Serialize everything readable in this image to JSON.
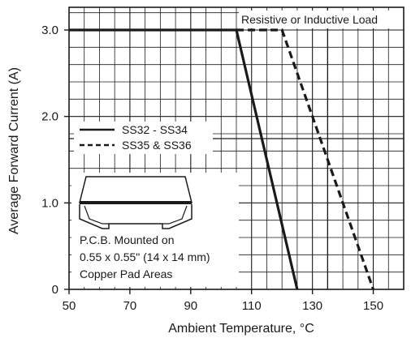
{
  "chart_data": {
    "type": "line",
    "xlabel": "Ambient Temperature, °C",
    "ylabel": "Average Forward Current (A)",
    "xlim": [
      50,
      160
    ],
    "ylim": [
      0,
      3.0
    ],
    "x_ticks": [
      50,
      70,
      90,
      110,
      130,
      150
    ],
    "x_tick_labels": [
      "50",
      "70",
      "90",
      "110",
      "130",
      "150"
    ],
    "y_ticks": [
      0,
      1.0,
      2.0,
      3.0
    ],
    "y_tick_labels": [
      "0",
      "1.0",
      "2.0",
      "3.0"
    ],
    "grid": true,
    "series": [
      {
        "name": "SS32 - SS34",
        "style": "solid",
        "color": "#1a1a1a",
        "x": [
          50,
          105,
          125
        ],
        "y": [
          3.0,
          3.0,
          0
        ]
      },
      {
        "name": "SS35 & SS36",
        "style": "dashed",
        "color": "#1a1a1a",
        "x": [
          105,
          120,
          150
        ],
        "y": [
          3.0,
          3.0,
          0
        ]
      }
    ],
    "legend": {
      "position": "left"
    },
    "annotations": {
      "load_note": "Resistive or Inductive Load",
      "pcb_note_lines": [
        "P.C.B. Mounted on",
        "0.55 x 0.55\" (14 x 14 mm)",
        "Copper Pad Areas"
      ]
    }
  }
}
